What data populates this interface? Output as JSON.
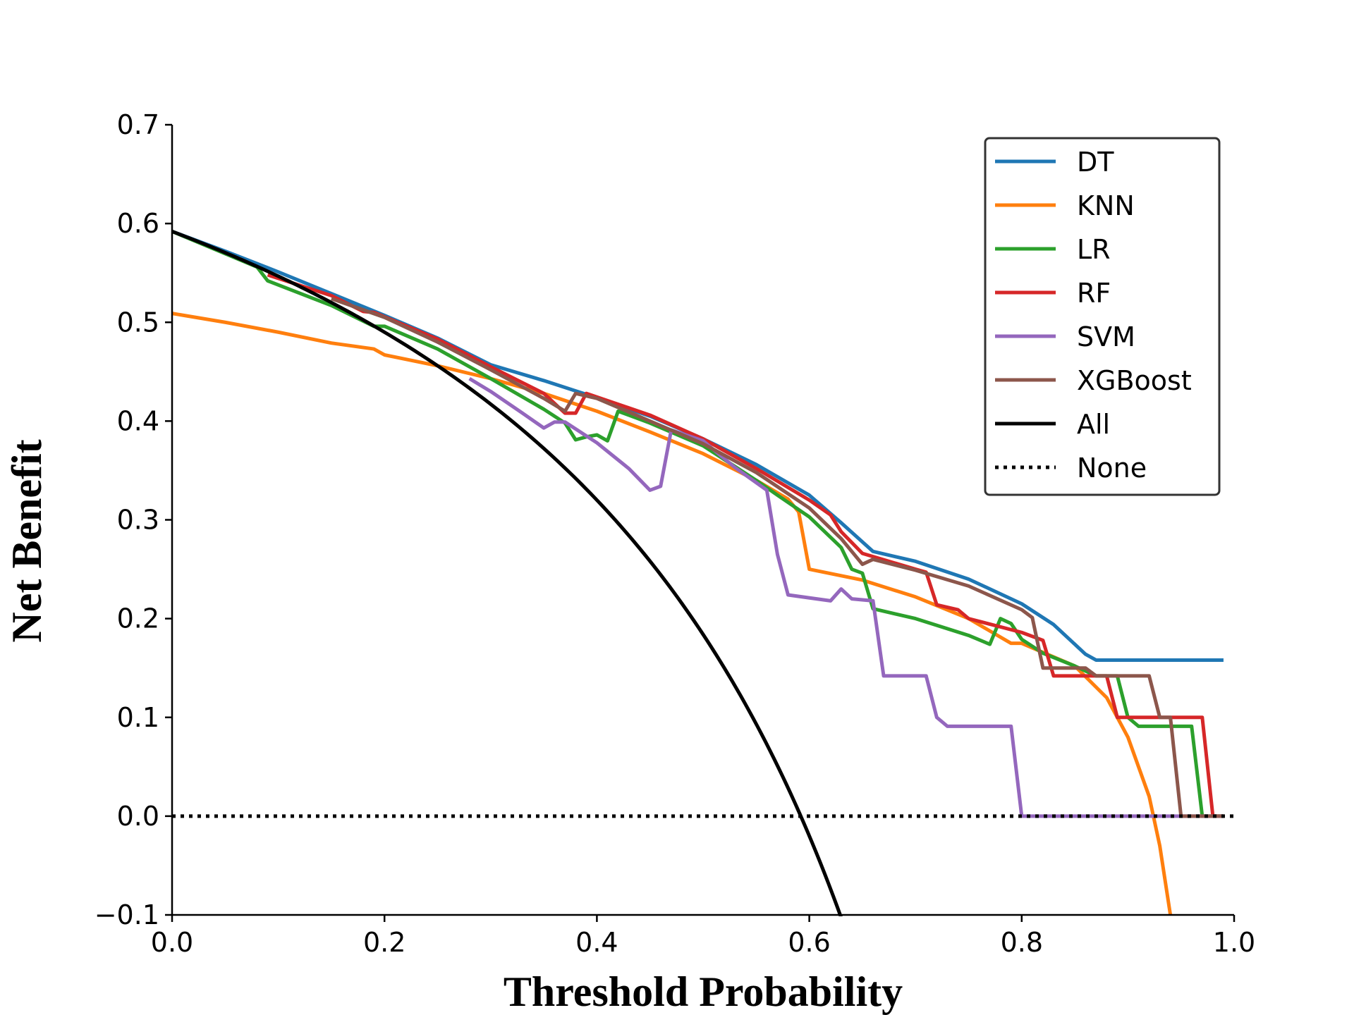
{
  "chart_data": {
    "type": "line",
    "title": "",
    "xlabel": "Threshold Probability",
    "ylabel": "Net Benefit",
    "xlim": [
      0.0,
      1.0
    ],
    "ylim": [
      -0.1,
      0.7
    ],
    "x_ticks": [
      0.0,
      0.2,
      0.4,
      0.6,
      0.8,
      1.0
    ],
    "x_tick_labels": [
      "0.0",
      "0.2",
      "0.4",
      "0.6",
      "0.8",
      "1.0"
    ],
    "y_ticks": [
      -0.1,
      0.0,
      0.1,
      0.2,
      0.3,
      0.4,
      0.5,
      0.6,
      0.7
    ],
    "y_tick_labels": [
      "−0.1",
      "0.0",
      "0.1",
      "0.2",
      "0.3",
      "0.4",
      "0.5",
      "0.6",
      "0.7"
    ],
    "grid": false,
    "legend_position": "top-right",
    "series": [
      {
        "name": "DT",
        "color": "#1f77b4",
        "style": "solid",
        "points": [
          [
            0.0,
            0.592
          ],
          [
            0.05,
            0.572
          ],
          [
            0.1,
            0.551
          ],
          [
            0.15,
            0.529
          ],
          [
            0.2,
            0.507
          ],
          [
            0.25,
            0.484
          ],
          [
            0.3,
            0.457
          ],
          [
            0.35,
            0.441
          ],
          [
            0.39,
            0.427
          ],
          [
            0.45,
            0.405
          ],
          [
            0.5,
            0.382
          ],
          [
            0.55,
            0.356
          ],
          [
            0.6,
            0.325
          ],
          [
            0.63,
            0.297
          ],
          [
            0.66,
            0.268
          ],
          [
            0.7,
            0.258
          ],
          [
            0.75,
            0.24
          ],
          [
            0.8,
            0.215
          ],
          [
            0.83,
            0.194
          ],
          [
            0.86,
            0.164
          ],
          [
            0.87,
            0.158
          ],
          [
            0.99,
            0.158
          ]
        ]
      },
      {
        "name": "KNN",
        "color": "#ff7f0e",
        "style": "solid",
        "points": [
          [
            0.0,
            0.509
          ],
          [
            0.05,
            0.5
          ],
          [
            0.1,
            0.49
          ],
          [
            0.15,
            0.479
          ],
          [
            0.19,
            0.473
          ],
          [
            0.2,
            0.467
          ],
          [
            0.25,
            0.456
          ],
          [
            0.3,
            0.443
          ],
          [
            0.35,
            0.428
          ],
          [
            0.4,
            0.41
          ],
          [
            0.45,
            0.389
          ],
          [
            0.5,
            0.367
          ],
          [
            0.55,
            0.34
          ],
          [
            0.58,
            0.321
          ],
          [
            0.59,
            0.308
          ],
          [
            0.6,
            0.25
          ],
          [
            0.65,
            0.239
          ],
          [
            0.7,
            0.222
          ],
          [
            0.75,
            0.2
          ],
          [
            0.79,
            0.175
          ],
          [
            0.8,
            0.175
          ],
          [
            0.85,
            0.152
          ],
          [
            0.88,
            0.12
          ],
          [
            0.9,
            0.08
          ],
          [
            0.92,
            0.02
          ],
          [
            0.93,
            -0.03
          ],
          [
            0.94,
            -0.1
          ]
        ]
      },
      {
        "name": "LR",
        "color": "#2ca02c",
        "style": "solid",
        "points": [
          [
            0.0,
            0.592
          ],
          [
            0.08,
            0.556
          ],
          [
            0.09,
            0.542
          ],
          [
            0.15,
            0.517
          ],
          [
            0.19,
            0.496
          ],
          [
            0.2,
            0.496
          ],
          [
            0.25,
            0.473
          ],
          [
            0.3,
            0.443
          ],
          [
            0.35,
            0.412
          ],
          [
            0.37,
            0.398
          ],
          [
            0.38,
            0.381
          ],
          [
            0.39,
            0.384
          ],
          [
            0.4,
            0.386
          ],
          [
            0.41,
            0.38
          ],
          [
            0.42,
            0.41
          ],
          [
            0.45,
            0.398
          ],
          [
            0.5,
            0.375
          ],
          [
            0.55,
            0.34
          ],
          [
            0.57,
            0.325
          ],
          [
            0.6,
            0.303
          ],
          [
            0.63,
            0.272
          ],
          [
            0.64,
            0.25
          ],
          [
            0.65,
            0.246
          ],
          [
            0.66,
            0.21
          ],
          [
            0.7,
            0.2
          ],
          [
            0.75,
            0.183
          ],
          [
            0.77,
            0.174
          ],
          [
            0.78,
            0.2
          ],
          [
            0.79,
            0.195
          ],
          [
            0.8,
            0.179
          ],
          [
            0.82,
            0.165
          ],
          [
            0.85,
            0.152
          ],
          [
            0.87,
            0.142
          ],
          [
            0.89,
            0.142
          ],
          [
            0.9,
            0.1
          ],
          [
            0.91,
            0.091
          ],
          [
            0.96,
            0.091
          ],
          [
            0.97,
            0.0
          ],
          [
            0.99,
            0.0
          ]
        ]
      },
      {
        "name": "RF",
        "color": "#d62728",
        "style": "solid",
        "points": [
          [
            0.09,
            0.548
          ],
          [
            0.15,
            0.527
          ],
          [
            0.18,
            0.511
          ],
          [
            0.19,
            0.51
          ],
          [
            0.25,
            0.483
          ],
          [
            0.3,
            0.455
          ],
          [
            0.35,
            0.428
          ],
          [
            0.37,
            0.408
          ],
          [
            0.38,
            0.408
          ],
          [
            0.39,
            0.428
          ],
          [
            0.45,
            0.406
          ],
          [
            0.5,
            0.382
          ],
          [
            0.55,
            0.352
          ],
          [
            0.6,
            0.32
          ],
          [
            0.62,
            0.305
          ],
          [
            0.63,
            0.288
          ],
          [
            0.65,
            0.266
          ],
          [
            0.7,
            0.25
          ],
          [
            0.71,
            0.247
          ],
          [
            0.72,
            0.214
          ],
          [
            0.74,
            0.209
          ],
          [
            0.75,
            0.2
          ],
          [
            0.8,
            0.186
          ],
          [
            0.82,
            0.178
          ],
          [
            0.83,
            0.142
          ],
          [
            0.87,
            0.142
          ],
          [
            0.88,
            0.142
          ],
          [
            0.89,
            0.1
          ],
          [
            0.95,
            0.1
          ],
          [
            0.97,
            0.1
          ],
          [
            0.98,
            0.0
          ],
          [
            0.99,
            0.0
          ]
        ]
      },
      {
        "name": "SVM",
        "color": "#9467bd",
        "style": "solid",
        "points": [
          [
            0.28,
            0.443
          ],
          [
            0.3,
            0.43
          ],
          [
            0.33,
            0.408
          ],
          [
            0.35,
            0.393
          ],
          [
            0.36,
            0.399
          ],
          [
            0.37,
            0.399
          ],
          [
            0.4,
            0.378
          ],
          [
            0.43,
            0.352
          ],
          [
            0.45,
            0.33
          ],
          [
            0.46,
            0.334
          ],
          [
            0.47,
            0.391
          ],
          [
            0.5,
            0.38
          ],
          [
            0.53,
            0.353
          ],
          [
            0.56,
            0.33
          ],
          [
            0.57,
            0.265
          ],
          [
            0.58,
            0.224
          ],
          [
            0.62,
            0.218
          ],
          [
            0.63,
            0.23
          ],
          [
            0.64,
            0.22
          ],
          [
            0.66,
            0.218
          ],
          [
            0.67,
            0.142
          ],
          [
            0.71,
            0.142
          ],
          [
            0.72,
            0.1
          ],
          [
            0.73,
            0.091
          ],
          [
            0.79,
            0.091
          ],
          [
            0.8,
            0.0
          ],
          [
            0.99,
            0.0
          ]
        ]
      },
      {
        "name": "XGBoost",
        "color": "#8c564b",
        "style": "solid",
        "points": [
          [
            0.15,
            0.524
          ],
          [
            0.2,
            0.505
          ],
          [
            0.25,
            0.48
          ],
          [
            0.3,
            0.452
          ],
          [
            0.35,
            0.423
          ],
          [
            0.37,
            0.41
          ],
          [
            0.38,
            0.428
          ],
          [
            0.4,
            0.423
          ],
          [
            0.45,
            0.4
          ],
          [
            0.5,
            0.377
          ],
          [
            0.55,
            0.348
          ],
          [
            0.6,
            0.312
          ],
          [
            0.63,
            0.281
          ],
          [
            0.65,
            0.255
          ],
          [
            0.66,
            0.26
          ],
          [
            0.7,
            0.249
          ],
          [
            0.75,
            0.233
          ],
          [
            0.8,
            0.209
          ],
          [
            0.81,
            0.201
          ],
          [
            0.82,
            0.15
          ],
          [
            0.86,
            0.15
          ],
          [
            0.87,
            0.142
          ],
          [
            0.92,
            0.142
          ],
          [
            0.93,
            0.1
          ],
          [
            0.94,
            0.1
          ],
          [
            0.95,
            0.0
          ],
          [
            0.99,
            0.0
          ]
        ]
      },
      {
        "name": "All",
        "color": "#000000",
        "style": "solid",
        "curve": "treat_all",
        "prevalence": 0.592,
        "x_range": [
          0.0,
          0.63
        ]
      },
      {
        "name": "None",
        "color": "#000000",
        "style": "dotted",
        "points": [
          [
            0.0,
            0.0
          ],
          [
            1.0,
            0.0
          ]
        ]
      }
    ]
  }
}
